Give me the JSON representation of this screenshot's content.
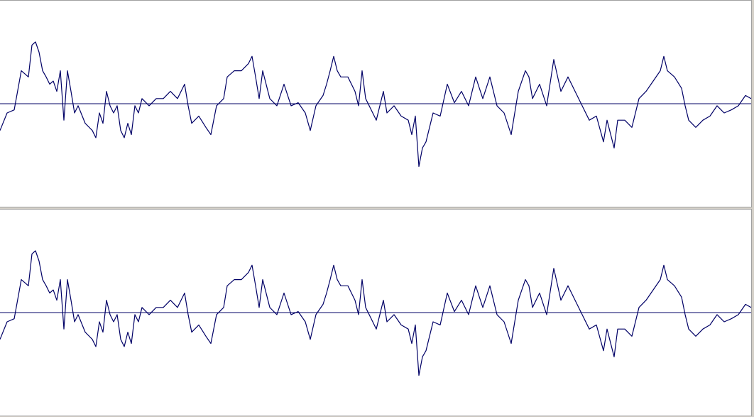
{
  "chart_data": [
    {
      "type": "line",
      "color": "#000066",
      "xlim": [
        0,
        1058
      ],
      "ylim": [
        -1,
        1
      ],
      "x": [
        0,
        10,
        20,
        30,
        40,
        45,
        50,
        55,
        60,
        65,
        70,
        75,
        80,
        85,
        90,
        95,
        100,
        105,
        110,
        120,
        130,
        135,
        140,
        145,
        150,
        155,
        160,
        165,
        170,
        175,
        180,
        185,
        190,
        195,
        200,
        210,
        220,
        230,
        240,
        250,
        260,
        265,
        270,
        280,
        290,
        297,
        305,
        315,
        320,
        330,
        340,
        350,
        355,
        360,
        365,
        370,
        380,
        390,
        400,
        410,
        420,
        430,
        437,
        445,
        455,
        460,
        465,
        470,
        475,
        480,
        490,
        500,
        505,
        510,
        515,
        525,
        530,
        540,
        545,
        555,
        565,
        575,
        580,
        585,
        590,
        595,
        600,
        610,
        620,
        630,
        640,
        650,
        660,
        670,
        680,
        690,
        700,
        710,
        720,
        725,
        730,
        740,
        745,
        750,
        760,
        770,
        780,
        790,
        800,
        810,
        820,
        830,
        840,
        850,
        855,
        865,
        870,
        880,
        890,
        900,
        910,
        920,
        930,
        935,
        940,
        950,
        960,
        965,
        970,
        980,
        990,
        1000,
        1010,
        1020,
        1030,
        1040,
        1050,
        1058
      ],
      "values": [
        -0.26,
        -0.09,
        -0.06,
        0.32,
        0.26,
        0.57,
        0.6,
        0.5,
        0.32,
        0.26,
        0.19,
        0.22,
        0.12,
        0.32,
        -0.16,
        0.32,
        0.12,
        -0.09,
        -0.02,
        -0.19,
        -0.26,
        -0.33,
        -0.09,
        -0.19,
        0.12,
        -0.02,
        -0.09,
        -0.02,
        -0.26,
        -0.33,
        -0.19,
        -0.3,
        -0.02,
        -0.09,
        0.05,
        -0.02,
        0.05,
        0.05,
        0.12,
        0.05,
        0.19,
        -0.02,
        -0.19,
        -0.12,
        -0.23,
        -0.3,
        -0.02,
        0.05,
        0.26,
        0.32,
        0.32,
        0.39,
        0.46,
        0.26,
        0.05,
        0.32,
        0.05,
        -0.02,
        0.19,
        -0.02,
        0.01,
        -0.09,
        -0.26,
        -0.02,
        0.08,
        0.19,
        0.32,
        0.46,
        0.32,
        0.26,
        0.26,
        0.12,
        -0.02,
        0.32,
        0.05,
        -0.09,
        -0.16,
        0.12,
        -0.09,
        -0.02,
        -0.12,
        -0.16,
        -0.3,
        -0.12,
        -0.61,
        -0.43,
        -0.37,
        -0.09,
        -0.12,
        0.19,
        0.01,
        0.12,
        -0.02,
        0.26,
        0.05,
        0.26,
        -0.02,
        -0.09,
        -0.3,
        -0.09,
        0.12,
        0.32,
        0.26,
        0.05,
        0.19,
        -0.02,
        0.43,
        0.12,
        0.26,
        0.12,
        -0.02,
        -0.16,
        -0.12,
        -0.37,
        -0.16,
        -0.43,
        -0.16,
        -0.16,
        -0.23,
        0.05,
        0.12,
        0.22,
        0.32,
        0.46,
        0.32,
        0.26,
        0.15,
        -0.02,
        -0.16,
        -0.23,
        -0.16,
        -0.12,
        -0.02,
        -0.09,
        -0.06,
        -0.02,
        0.08,
        0.05
      ]
    },
    {
      "type": "line",
      "color": "#000066",
      "xlim": [
        0,
        1058
      ],
      "ylim": [
        -1,
        1
      ],
      "x": [
        0,
        10,
        20,
        30,
        40,
        45,
        50,
        55,
        60,
        65,
        70,
        75,
        80,
        85,
        90,
        95,
        100,
        105,
        110,
        120,
        130,
        135,
        140,
        145,
        150,
        155,
        160,
        165,
        170,
        175,
        180,
        185,
        190,
        195,
        200,
        210,
        220,
        230,
        240,
        250,
        260,
        265,
        270,
        280,
        290,
        297,
        305,
        315,
        320,
        330,
        340,
        350,
        355,
        360,
        365,
        370,
        380,
        390,
        400,
        410,
        420,
        430,
        437,
        445,
        455,
        460,
        465,
        470,
        475,
        480,
        490,
        500,
        505,
        510,
        515,
        525,
        530,
        540,
        545,
        555,
        565,
        575,
        580,
        585,
        590,
        595,
        600,
        610,
        620,
        630,
        640,
        650,
        660,
        670,
        680,
        690,
        700,
        710,
        720,
        725,
        730,
        740,
        745,
        750,
        760,
        770,
        780,
        790,
        800,
        810,
        820,
        830,
        840,
        850,
        855,
        865,
        870,
        880,
        890,
        900,
        910,
        920,
        930,
        935,
        940,
        950,
        960,
        965,
        970,
        980,
        990,
        1000,
        1010,
        1020,
        1030,
        1040,
        1050,
        1058
      ],
      "values": [
        -0.26,
        -0.09,
        -0.06,
        0.32,
        0.26,
        0.57,
        0.6,
        0.5,
        0.32,
        0.26,
        0.19,
        0.22,
        0.12,
        0.32,
        -0.16,
        0.32,
        0.12,
        -0.09,
        -0.02,
        -0.19,
        -0.26,
        -0.33,
        -0.09,
        -0.19,
        0.12,
        -0.02,
        -0.09,
        -0.02,
        -0.26,
        -0.33,
        -0.19,
        -0.3,
        -0.02,
        -0.09,
        0.05,
        -0.02,
        0.05,
        0.05,
        0.12,
        0.05,
        0.19,
        -0.02,
        -0.19,
        -0.12,
        -0.23,
        -0.3,
        -0.02,
        0.05,
        0.26,
        0.32,
        0.32,
        0.39,
        0.46,
        0.26,
        0.05,
        0.32,
        0.05,
        -0.02,
        0.19,
        -0.02,
        0.01,
        -0.09,
        -0.26,
        -0.02,
        0.08,
        0.19,
        0.32,
        0.46,
        0.32,
        0.26,
        0.26,
        0.12,
        -0.02,
        0.32,
        0.05,
        -0.09,
        -0.16,
        0.12,
        -0.09,
        -0.02,
        -0.12,
        -0.16,
        -0.3,
        -0.12,
        -0.61,
        -0.43,
        -0.37,
        -0.09,
        -0.12,
        0.19,
        0.01,
        0.12,
        -0.02,
        0.26,
        0.05,
        0.26,
        -0.02,
        -0.09,
        -0.3,
        -0.09,
        0.12,
        0.32,
        0.26,
        0.05,
        0.19,
        -0.02,
        0.43,
        0.12,
        0.26,
        0.12,
        -0.02,
        -0.16,
        -0.12,
        -0.37,
        -0.16,
        -0.43,
        -0.16,
        -0.16,
        -0.23,
        0.05,
        0.12,
        0.22,
        0.32,
        0.46,
        0.32,
        0.26,
        0.15,
        -0.02,
        -0.16,
        -0.23,
        -0.16,
        -0.12,
        -0.02,
        -0.09,
        -0.06,
        -0.02,
        0.08,
        0.05
      ]
    }
  ]
}
